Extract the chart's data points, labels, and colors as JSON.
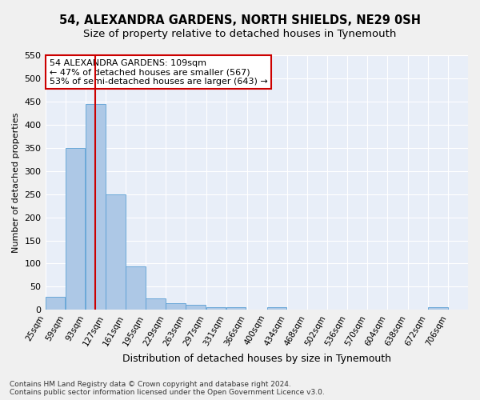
{
  "title": "54, ALEXANDRA GARDENS, NORTH SHIELDS, NE29 0SH",
  "subtitle": "Size of property relative to detached houses in Tynemouth",
  "xlabel": "Distribution of detached houses by size in Tynemouth",
  "ylabel": "Number of detached properties",
  "bin_edges": [
    25,
    59,
    93,
    127,
    161,
    195,
    229,
    263,
    297,
    331,
    366,
    400,
    434,
    468,
    502,
    536,
    570,
    604,
    638,
    672,
    706
  ],
  "bar_heights": [
    28,
    350,
    445,
    250,
    93,
    25,
    14,
    11,
    6,
    6,
    0,
    5,
    0,
    0,
    0,
    0,
    0,
    0,
    0,
    5,
    0
  ],
  "bar_color": "#adc8e6",
  "bar_edge_color": "#5a9fd4",
  "property_size": 109,
  "red_line_color": "#cc0000",
  "annotation_line1": "54 ALEXANDRA GARDENS: 109sqm",
  "annotation_line2": "← 47% of detached houses are smaller (567)",
  "annotation_line3": "53% of semi-detached houses are larger (643) →",
  "annotation_box_color": "#ffffff",
  "annotation_box_edge_color": "#cc0000",
  "ylim": [
    0,
    550
  ],
  "yticks": [
    0,
    50,
    100,
    150,
    200,
    250,
    300,
    350,
    400,
    450,
    500,
    550
  ],
  "footer_line1": "Contains HM Land Registry data © Crown copyright and database right 2024.",
  "footer_line2": "Contains public sector information licensed under the Open Government Licence v3.0.",
  "background_color": "#e8eef8",
  "grid_color": "#ffffff",
  "title_fontsize": 10.5,
  "subtitle_fontsize": 9.5,
  "annotation_fontsize": 8,
  "xlabel_fontsize": 9,
  "ylabel_fontsize": 8,
  "tick_fontsize": 7.5,
  "footer_fontsize": 6.5
}
